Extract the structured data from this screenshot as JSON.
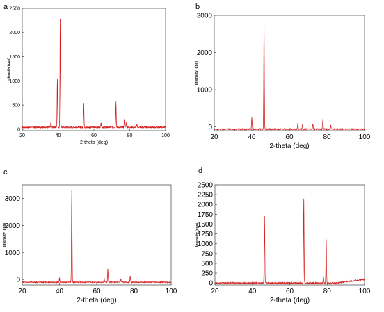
{
  "chart_data": [
    {
      "type": "line",
      "panel_label": "a",
      "xlabel": "2-theta (deg)",
      "ylabel": "Intensity (cps)",
      "xlim": [
        20,
        100
      ],
      "ylim": [
        -30,
        2500
      ],
      "x_ticks": [
        20,
        40,
        60,
        80,
        100
      ],
      "y_ticks": [
        0,
        500,
        1000,
        1500,
        2000,
        2500
      ],
      "grid": false,
      "color": "#d62020",
      "baseline": 40,
      "noise": 14,
      "peaks": [
        {
          "x": 36.0,
          "y": 150
        },
        {
          "x": 39.6,
          "y": 1040
        },
        {
          "x": 41.2,
          "y": 2260
        },
        {
          "x": 54.3,
          "y": 530
        },
        {
          "x": 64.0,
          "y": 120
        },
        {
          "x": 72.3,
          "y": 560
        },
        {
          "x": 77.0,
          "y": 200
        },
        {
          "x": 78.0,
          "y": 130
        },
        {
          "x": 84.0,
          "y": 90
        }
      ]
    },
    {
      "type": "line",
      "panel_label": "b",
      "xlabel": "2-theta (deg)",
      "ylabel": "Intensity (cps)",
      "xlim": [
        20,
        100
      ],
      "ylim": [
        -100,
        3000
      ],
      "x_ticks": [
        20,
        40,
        60,
        80,
        100
      ],
      "y_ticks": [
        0,
        1000,
        2000,
        3000
      ],
      "grid": false,
      "color": "#d62020",
      "baseline": -60,
      "noise": 14,
      "peaks": [
        {
          "x": 40.0,
          "y": 240
        },
        {
          "x": 46.5,
          "y": 2670
        },
        {
          "x": 64.5,
          "y": 90
        },
        {
          "x": 67.0,
          "y": 60
        },
        {
          "x": 72.5,
          "y": 70
        },
        {
          "x": 77.8,
          "y": 200
        },
        {
          "x": 82.0,
          "y": 40
        }
      ]
    },
    {
      "type": "line",
      "panel_label": "c",
      "xlabel": "2-theta (deg)",
      "ylabel": "Intensity (cps)",
      "xlim": [
        20,
        100
      ],
      "ylim": [
        -200,
        3500
      ],
      "x_ticks": [
        20,
        40,
        60,
        80,
        100
      ],
      "y_ticks": [
        0,
        1000,
        2000,
        3000
      ],
      "grid": false,
      "color": "#d62020",
      "baseline": -100,
      "noise": 16,
      "peaks": [
        {
          "x": 40.0,
          "y": 50
        },
        {
          "x": 46.6,
          "y": 3270
        },
        {
          "x": 64.0,
          "y": 40
        },
        {
          "x": 66.0,
          "y": 380
        },
        {
          "x": 73.0,
          "y": 20
        },
        {
          "x": 78.0,
          "y": 120
        }
      ]
    },
    {
      "type": "line",
      "panel_label": "d",
      "xlabel": "2-theta (deg)",
      "ylabel": "Intensity (cps)",
      "xlim": [
        20,
        100
      ],
      "ylim": [
        -50,
        2500
      ],
      "x_ticks": [
        20,
        40,
        60,
        80,
        100
      ],
      "y_ticks": [
        0,
        250,
        500,
        750,
        1000,
        1250,
        1500,
        1750,
        2000,
        2250,
        2500
      ],
      "grid": false,
      "color": "#d62020",
      "baseline": 0,
      "noise": 14,
      "peaks": [
        {
          "x": 40.0,
          "y": 20
        },
        {
          "x": 46.5,
          "y": 1690
        },
        {
          "x": 67.5,
          "y": 2140
        },
        {
          "x": 78.0,
          "y": 160
        },
        {
          "x": 79.5,
          "y": 1100
        }
      ]
    }
  ]
}
